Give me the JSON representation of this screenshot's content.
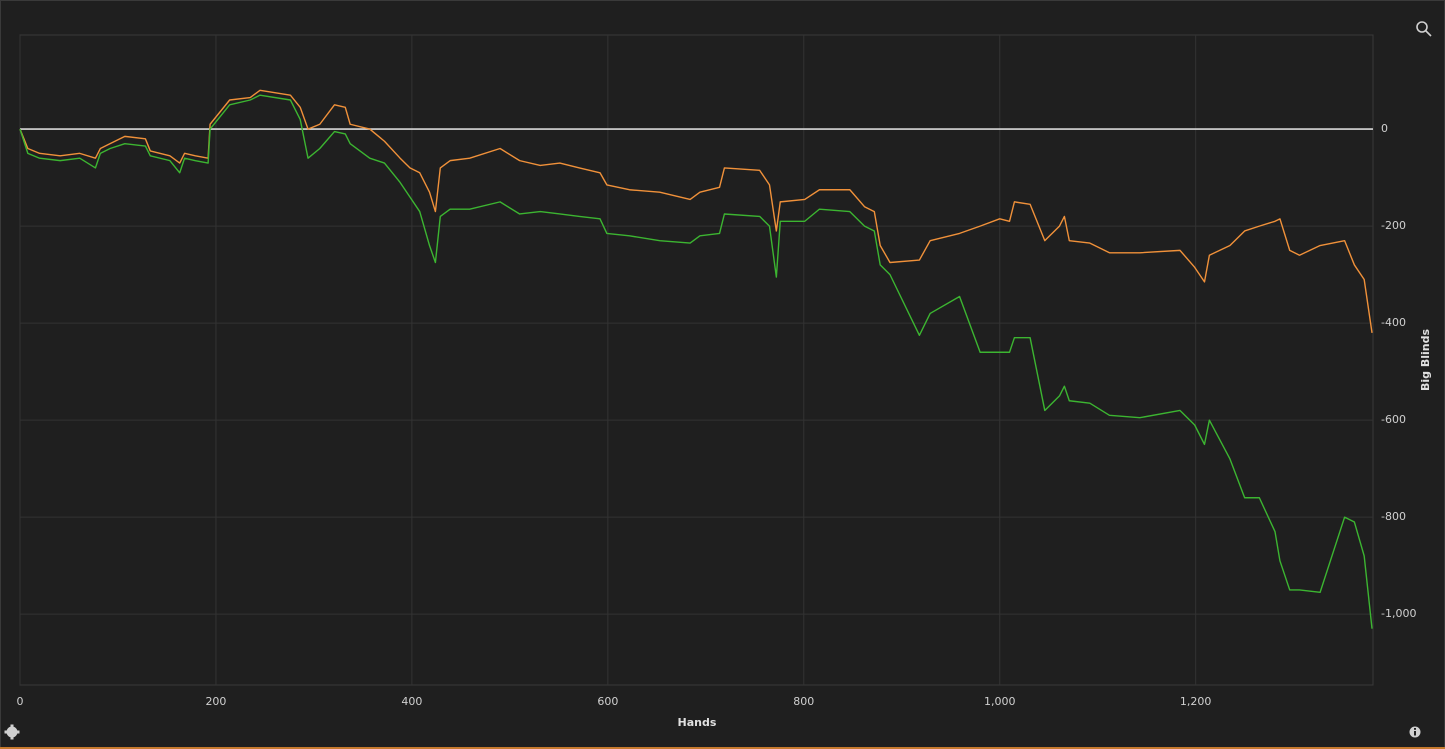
{
  "chart_data": {
    "type": "line",
    "x_label": "Hands",
    "y_label": "Big Blinds",
    "x": [
      0,
      8,
      20,
      41,
      61,
      77,
      82,
      92,
      107,
      128,
      133,
      153,
      163,
      168,
      179,
      192,
      194,
      214,
      235,
      245,
      276,
      286,
      294,
      306,
      321,
      332,
      337,
      357,
      372,
      388,
      398,
      408,
      418,
      424,
      429,
      439,
      459,
      490,
      510,
      531,
      551,
      571,
      592,
      599,
      622,
      653,
      684,
      694,
      714,
      719,
      755,
      765,
      772,
      776,
      801,
      816,
      847,
      862,
      872,
      878,
      888,
      918,
      929,
      959,
      980,
      1000,
      1010,
      1015,
      1031,
      1046,
      1061,
      1066,
      1071,
      1092,
      1112,
      1143,
      1184,
      1199,
      1209,
      1214,
      1235,
      1250,
      1265,
      1281,
      1286,
      1296,
      1306,
      1327,
      1352,
      1362,
      1372,
      1380
    ],
    "series": [
      {
        "color": "#f0913a",
        "values": [
          0,
          -40,
          -50,
          -55,
          -50,
          -60,
          -40,
          -30,
          -15,
          -20,
          -45,
          -55,
          -70,
          -50,
          -55,
          -60,
          10,
          60,
          65,
          80,
          70,
          45,
          0,
          10,
          50,
          45,
          10,
          0,
          -25,
          -60,
          -80,
          -90,
          -130,
          -170,
          -80,
          -65,
          -60,
          -40,
          -65,
          -75,
          -70,
          -80,
          -90,
          -115,
          -125,
          -130,
          -145,
          -130,
          -120,
          -80,
          -85,
          -115,
          -210,
          -150,
          -145,
          -125,
          -125,
          -160,
          -170,
          -240,
          -275,
          -270,
          -230,
          -215,
          -200,
          -185,
          -190,
          -150,
          -155,
          -230,
          -200,
          -180,
          -230,
          -235,
          -255,
          -255,
          -250,
          -285,
          -315,
          -260,
          -240,
          -210,
          -200,
          -190,
          -185,
          -250,
          -260,
          -240,
          -230,
          -280,
          -310,
          -420
        ]
      },
      {
        "color": "#3cb531",
        "values": [
          0,
          -50,
          -60,
          -65,
          -60,
          -80,
          -50,
          -40,
          -30,
          -35,
          -55,
          -65,
          -90,
          -60,
          -65,
          -70,
          0,
          50,
          60,
          70,
          60,
          20,
          -60,
          -40,
          -5,
          -10,
          -30,
          -60,
          -70,
          -110,
          -140,
          -170,
          -240,
          -275,
          -180,
          -165,
          -165,
          -150,
          -175,
          -170,
          -175,
          -180,
          -185,
          -215,
          -220,
          -230,
          -235,
          -220,
          -215,
          -175,
          -180,
          -200,
          -305,
          -190,
          -190,
          -165,
          -170,
          -200,
          -210,
          -280,
          -300,
          -425,
          -380,
          -345,
          -460,
          -460,
          -460,
          -430,
          -430,
          -580,
          -550,
          -530,
          -560,
          -565,
          -590,
          -595,
          -580,
          -610,
          -650,
          -600,
          -680,
          -760,
          -760,
          -830,
          -890,
          -950,
          -950,
          -955,
          -800,
          -810,
          -880,
          -1030
        ]
      }
    ],
    "xlim": [
      0,
      1381
    ],
    "ylim": [
      -1146,
      194
    ],
    "xticks": [
      0,
      200,
      400,
      600,
      800,
      {
        "value": 1000,
        "label": "1,000"
      },
      {
        "value": 1200,
        "label": "1,200"
      }
    ],
    "yticks": [
      0,
      -200,
      -400,
      -600,
      -800,
      {
        "value": -1000,
        "label": "-1,000"
      }
    ],
    "reference_line": 0,
    "reference_color": "#d8d8d8",
    "grid": true,
    "y_axis_side": "right"
  }
}
